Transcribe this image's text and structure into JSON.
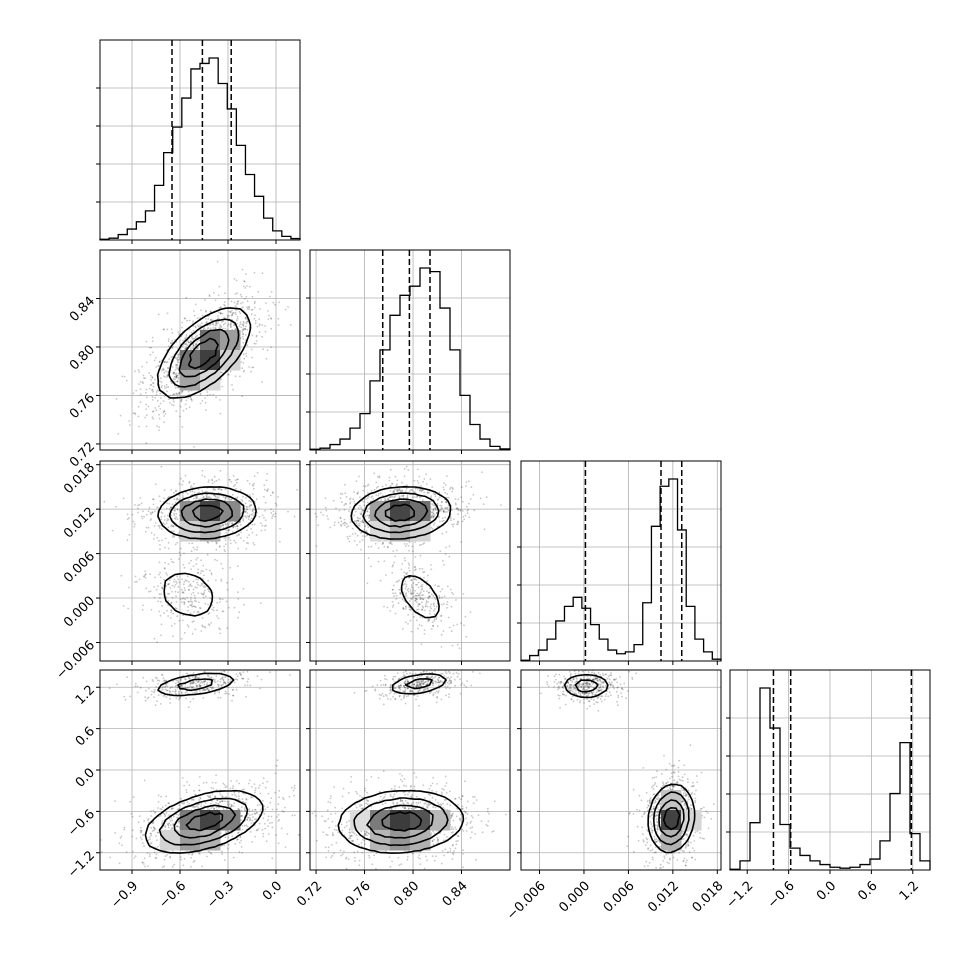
{
  "chart_data": {
    "type": "corner",
    "grid": true,
    "params": [
      {
        "range": [
          -1.1,
          0.15
        ],
        "ticks": [
          -0.9,
          -0.6,
          -0.3,
          0.0
        ],
        "tick_labels": [
          "−0.9",
          "−0.6",
          "−0.3",
          "0.0"
        ],
        "quantiles": [
          -0.65,
          -0.46,
          -0.28
        ],
        "hist_bins": [
          0.004,
          0.01,
          0.03,
          0.06,
          0.1,
          0.16,
          0.3,
          0.48,
          0.62,
          0.78,
          0.94,
          0.97,
          1.0,
          0.86,
          0.72,
          0.52,
          0.36,
          0.24,
          0.12,
          0.05,
          0.02,
          0.008
        ]
      },
      {
        "range": [
          0.715,
          0.88
        ],
        "ticks": [
          0.72,
          0.76,
          0.8,
          0.84
        ],
        "tick_labels": [
          "0.72",
          "0.76",
          "0.80",
          "0.84"
        ],
        "quantiles": [
          0.775,
          0.797,
          0.814
        ],
        "hist_bins": [
          0.004,
          0.01,
          0.03,
          0.06,
          0.12,
          0.2,
          0.38,
          0.55,
          0.74,
          0.85,
          0.9,
          1.0,
          0.98,
          0.78,
          0.55,
          0.3,
          0.14,
          0.06,
          0.02,
          0.006
        ]
      },
      {
        "range": [
          -0.0085,
          0.0185
        ],
        "ticks": [
          -0.006,
          0.0,
          0.006,
          0.012,
          0.018
        ],
        "tick_labels": [
          "−0.006",
          "0.000",
          "0.006",
          "0.012",
          "0.018"
        ],
        "quantiles": [
          0.0002,
          0.0104,
          0.0132
        ],
        "hist_bins": [
          0.004,
          0.03,
          0.06,
          0.12,
          0.22,
          0.3,
          0.35,
          0.29,
          0.2,
          0.12,
          0.06,
          0.04,
          0.05,
          0.09,
          0.32,
          0.74,
          0.96,
          1.0,
          0.72,
          0.3,
          0.12,
          0.05,
          0.01
        ]
      },
      {
        "range": [
          -1.45,
          1.45
        ],
        "ticks": [
          -1.2,
          -0.6,
          0.0,
          0.6,
          1.2
        ],
        "tick_labels": [
          "−1.2",
          "−0.6",
          "0.0",
          "0.6",
          "1.2"
        ],
        "quantiles": [
          -0.82,
          -0.57,
          1.18
        ],
        "hist_bins": [
          0.004,
          0.05,
          0.26,
          1.0,
          0.78,
          0.25,
          0.12,
          0.08,
          0.05,
          0.03,
          0.015,
          0.01,
          0.015,
          0.03,
          0.06,
          0.16,
          0.42,
          0.7,
          0.2,
          0.05
        ]
      }
    ],
    "scatter_panels": [
      {
        "row": 1,
        "col": 0,
        "modes": [
          {
            "cx": -0.45,
            "cy": 0.795,
            "sx": 0.14,
            "sy": 0.018,
            "rho": 0.6,
            "w": 1.0
          }
        ]
      },
      {
        "row": 2,
        "col": 0,
        "modes": [
          {
            "cx": -0.43,
            "cy": 0.0115,
            "sx": 0.15,
            "sy": 0.0017,
            "rho": 0.1,
            "w": 0.78
          },
          {
            "cx": -0.55,
            "cy": 0.0005,
            "sx": 0.12,
            "sy": 0.0022,
            "rho": -0.2,
            "w": 0.22
          }
        ]
      },
      {
        "row": 2,
        "col": 1,
        "modes": [
          {
            "cx": 0.79,
            "cy": 0.0115,
            "sx": 0.02,
            "sy": 0.0017,
            "rho": 0.1,
            "w": 0.78
          },
          {
            "cx": 0.806,
            "cy": 0.0002,
            "sx": 0.012,
            "sy": 0.0022,
            "rho": -0.5,
            "w": 0.22
          }
        ]
      },
      {
        "row": 3,
        "col": 0,
        "modes": [
          {
            "cx": -0.5,
            "cy": 1.24,
            "sx": 0.15,
            "sy": 0.1,
            "rho": 0.45,
            "w": 0.3
          },
          {
            "cx": -0.45,
            "cy": -0.75,
            "sx": 0.18,
            "sy": 0.22,
            "rho": 0.45,
            "w": 0.7
          }
        ]
      },
      {
        "row": 3,
        "col": 1,
        "modes": [
          {
            "cx": 0.805,
            "cy": 1.25,
            "sx": 0.014,
            "sy": 0.09,
            "rho": 0.4,
            "w": 0.3
          },
          {
            "cx": 0.79,
            "cy": -0.75,
            "sx": 0.025,
            "sy": 0.22,
            "rho": 0.1,
            "w": 0.7
          }
        ]
      },
      {
        "row": 3,
        "col": 2,
        "modes": [
          {
            "cx": 0.0003,
            "cy": 1.22,
            "sx": 0.0018,
            "sy": 0.1,
            "rho": 0.0,
            "w": 0.3
          },
          {
            "cx": 0.0118,
            "cy": -0.7,
            "sx": 0.0015,
            "sy": 0.24,
            "rho": 0.1,
            "w": 0.7
          }
        ]
      }
    ]
  }
}
